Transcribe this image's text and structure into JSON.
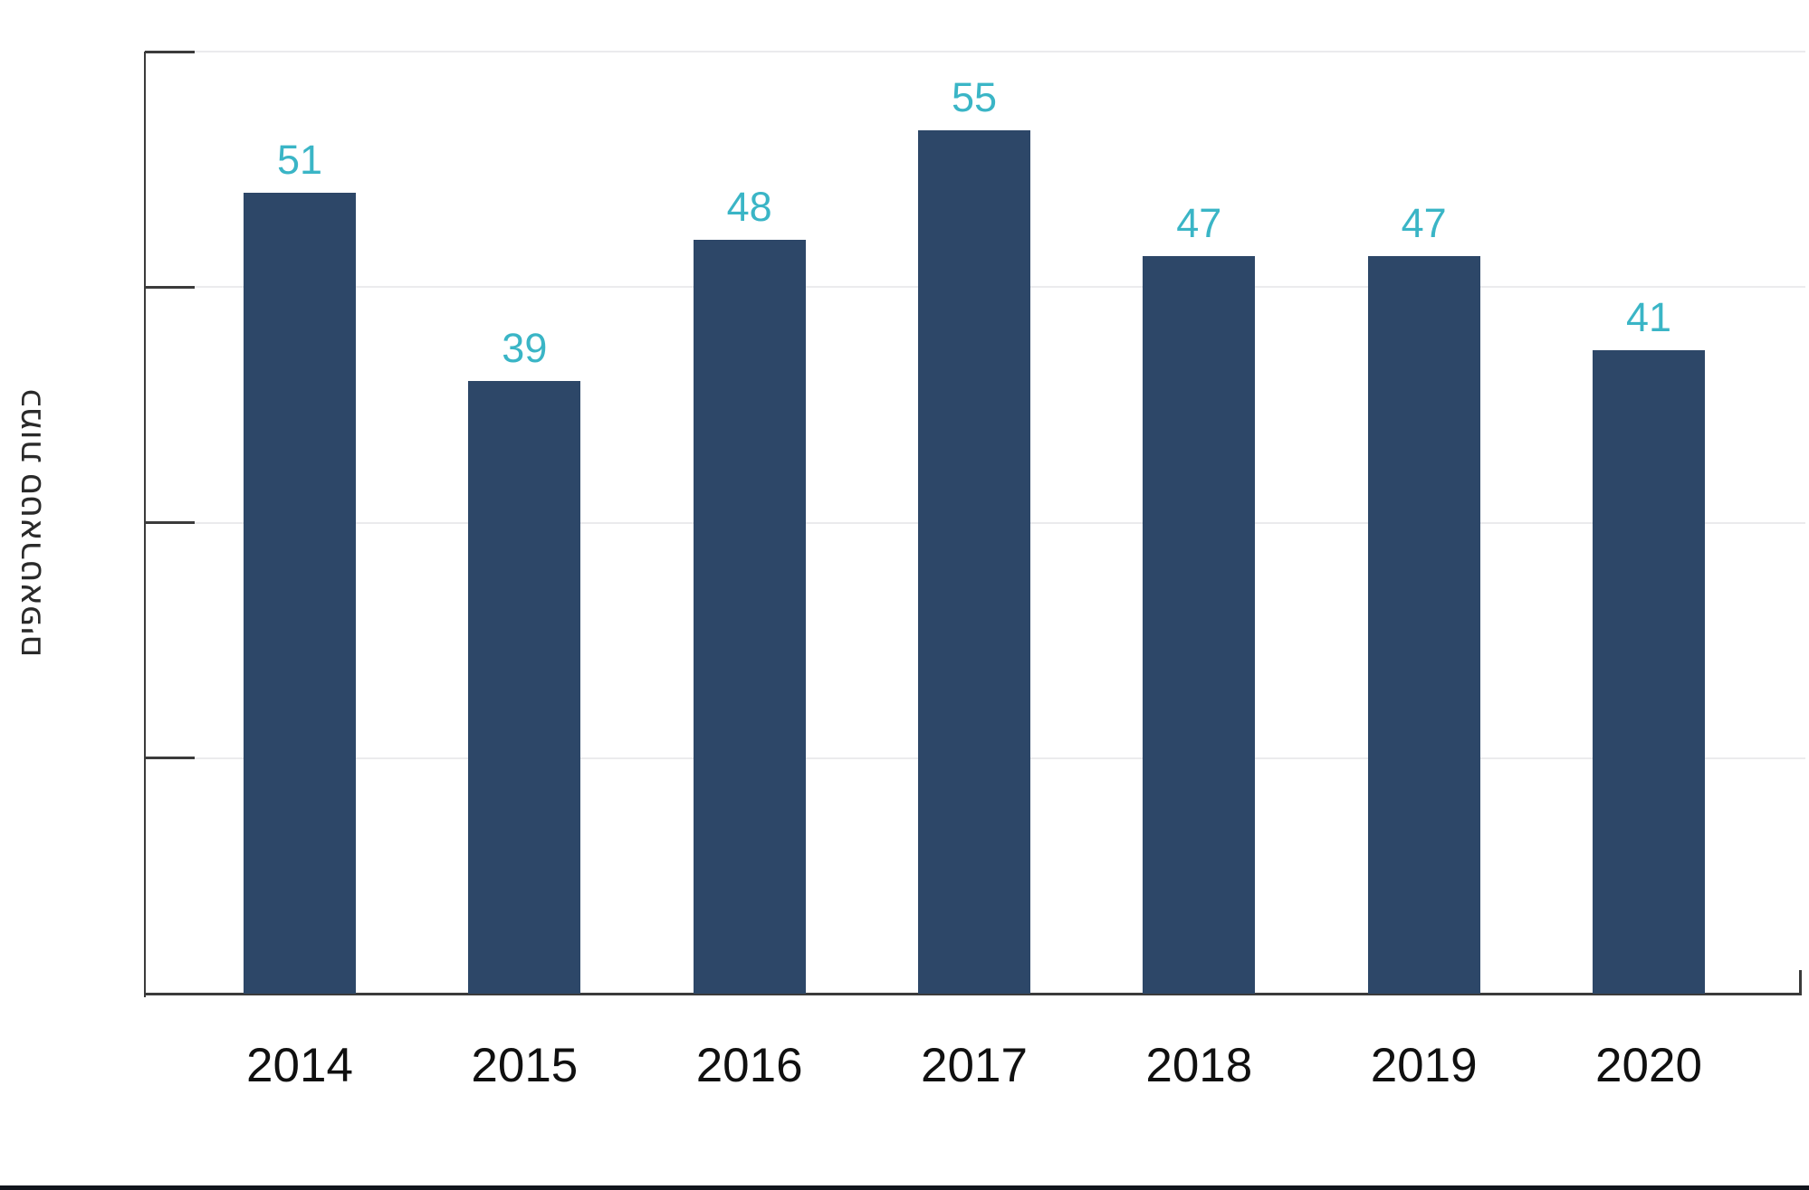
{
  "chart_data": {
    "type": "bar",
    "title": "",
    "categories": [
      "2014",
      "2015",
      "2016",
      "2017",
      "2018",
      "2019",
      "2020"
    ],
    "values": [
      51,
      39,
      48,
      55,
      47,
      47,
      41
    ],
    "value_labels": [
      "51",
      "39",
      "48",
      "55",
      "47",
      "47",
      "41"
    ],
    "xlabel": "",
    "ylabel": "כמות סטארטאפים",
    "ylim": [
      0,
      60
    ],
    "yticks": [
      0,
      15,
      30,
      45,
      60
    ],
    "ytick_labels_visible": false,
    "grid": "horizontal",
    "legend": "none",
    "bar_orientation": "vertical"
  },
  "colors": {
    "bar": "#2d4768",
    "value_label": "#3ab5c6",
    "axis": "#3b3b3b",
    "gridline": "#ebebed",
    "category_label": "#101010",
    "ylabel_text": "#2a2a2a",
    "background": "#ffffff",
    "footer_rule": "#11151c"
  }
}
